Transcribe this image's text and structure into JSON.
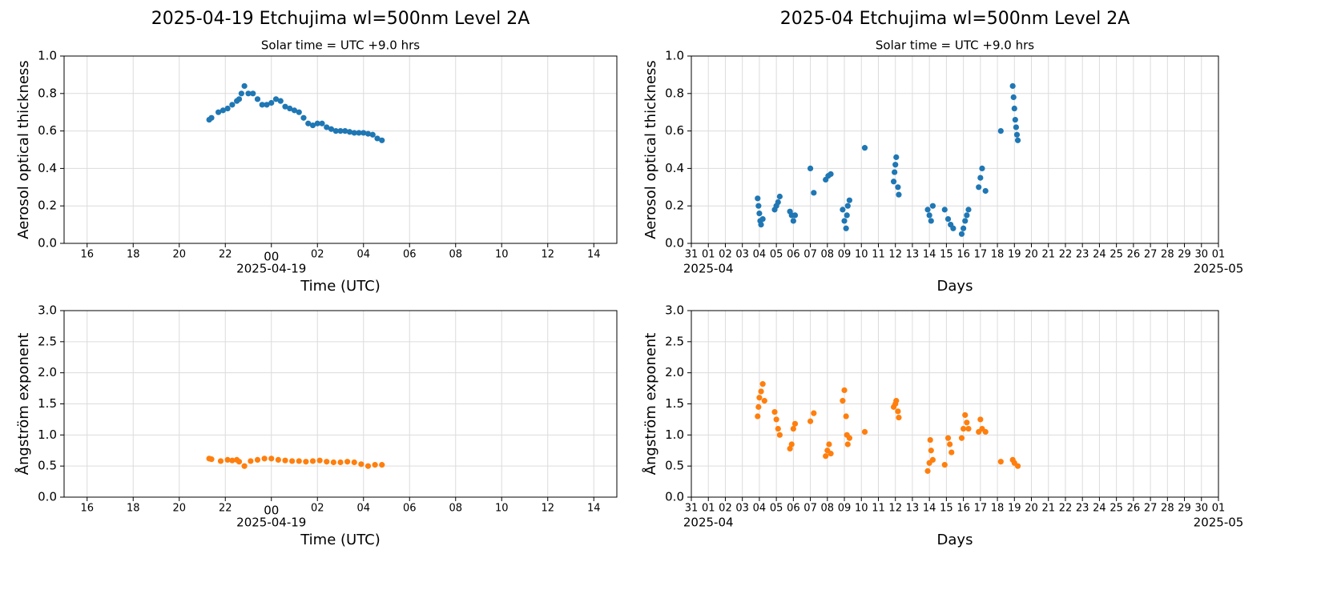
{
  "chart_data": [
    {
      "type": "scatter",
      "title": "2025-04-19  Etchujima  wl=500nm  Level 2A",
      "subtitle": "Solar time = UTC +9.0 hrs",
      "xlabel": "Time (UTC)",
      "ylabel": "Aerosol optical thickness",
      "color": "#1f77b4",
      "grid": true,
      "xlim": [
        -9,
        15
      ],
      "ylim": [
        0,
        1
      ],
      "xticks": [
        {
          "value": -8,
          "label": "16"
        },
        {
          "value": -6,
          "label": "18"
        },
        {
          "value": -4,
          "label": "20"
        },
        {
          "value": -2,
          "label": "22"
        },
        {
          "value": 0,
          "label": "00"
        },
        {
          "value": 2,
          "label": "02"
        },
        {
          "value": 4,
          "label": "04"
        },
        {
          "value": 6,
          "label": "06"
        },
        {
          "value": 8,
          "label": "08"
        },
        10,
        12,
        14
      ],
      "xdate_labels": [
        {
          "value": 0,
          "label": "2025-04-19"
        }
      ],
      "yticks": [
        {
          "value": 0,
          "label": "0.0"
        },
        0.2,
        0.4,
        0.6,
        0.8,
        {
          "value": 1,
          "label": "1.0"
        }
      ],
      "x": [
        -2.7,
        -2.6,
        -2.3,
        -2.1,
        -1.9,
        -1.7,
        -1.5,
        -1.4,
        -1.3,
        -1.17,
        -1.0,
        -0.8,
        -0.6,
        -0.4,
        -0.2,
        0,
        0.2,
        0.4,
        0.6,
        0.8,
        1.0,
        1.2,
        1.4,
        1.6,
        1.8,
        2.0,
        2.2,
        2.4,
        2.6,
        2.8,
        3.0,
        3.2,
        3.4,
        3.6,
        3.8,
        4.0,
        4.2,
        4.4,
        4.6,
        4.8
      ],
      "values": [
        0.66,
        0.67,
        0.7,
        0.71,
        0.72,
        0.74,
        0.76,
        0.77,
        0.8,
        0.84,
        0.8,
        0.8,
        0.77,
        0.74,
        0.74,
        0.75,
        0.77,
        0.76,
        0.73,
        0.72,
        0.71,
        0.7,
        0.67,
        0.64,
        0.63,
        0.64,
        0.64,
        0.62,
        0.61,
        0.6,
        0.6,
        0.6,
        0.595,
        0.59,
        0.59,
        0.59,
        0.585,
        0.58,
        0.56,
        0.55
      ]
    },
    {
      "type": "scatter",
      "title": "2025-04  Etchujima  wl=500nm  Level 2A",
      "subtitle": "Solar time = UTC +9.0 hrs",
      "xlabel": "Days",
      "ylabel": "Aerosol optical thickness",
      "color": "#1f77b4",
      "grid": true,
      "xlim": [
        0,
        31
      ],
      "ylim": [
        0,
        1
      ],
      "xticks": [
        {
          "value": 0,
          "label": "31"
        },
        {
          "value": 1,
          "label": "01"
        },
        {
          "value": 2,
          "label": "02"
        },
        {
          "value": 3,
          "label": "03"
        },
        {
          "value": 4,
          "label": "04"
        },
        {
          "value": 5,
          "label": "05"
        },
        {
          "value": 6,
          "label": "06"
        },
        {
          "value": 7,
          "label": "07"
        },
        {
          "value": 8,
          "label": "08"
        },
        {
          "value": 9,
          "label": "09"
        },
        10,
        11,
        12,
        13,
        14,
        15,
        16,
        17,
        18,
        19,
        20,
        21,
        22,
        23,
        24,
        25,
        26,
        27,
        28,
        29,
        30,
        {
          "value": 31,
          "label": "01"
        }
      ],
      "xdate_labels": [
        {
          "value": 1,
          "label": "2025-04"
        },
        {
          "value": 31,
          "label": "2025-05"
        }
      ],
      "yticks": [
        {
          "value": 0,
          "label": "0.0"
        },
        0.2,
        0.4,
        0.6,
        0.8,
        {
          "value": 1,
          "label": "1.0"
        }
      ],
      "x": [
        3.9,
        3.95,
        4.0,
        4.05,
        4.1,
        4.2,
        4.9,
        5.0,
        5.1,
        5.2,
        5.8,
        5.9,
        6.0,
        6.1,
        7.0,
        7.2,
        7.9,
        8.05,
        8.2,
        8.9,
        9.0,
        9.1,
        9.15,
        9.2,
        9.3,
        10.2,
        11.9,
        11.95,
        12.0,
        12.05,
        12.15,
        12.2,
        13.9,
        14.0,
        14.1,
        14.2,
        14.9,
        15.1,
        15.25,
        15.4,
        15.9,
        16.0,
        16.1,
        16.2,
        16.3,
        16.9,
        17.0,
        17.1,
        17.3,
        18.2,
        18.9,
        18.95,
        19.0,
        19.05,
        19.1,
        19.15,
        19.2
      ],
      "values": [
        0.24,
        0.2,
        0.16,
        0.12,
        0.1,
        0.13,
        0.18,
        0.2,
        0.22,
        0.25,
        0.17,
        0.15,
        0.12,
        0.15,
        0.4,
        0.27,
        0.34,
        0.36,
        0.37,
        0.18,
        0.12,
        0.08,
        0.15,
        0.2,
        0.23,
        0.51,
        0.33,
        0.38,
        0.42,
        0.46,
        0.3,
        0.26,
        0.18,
        0.15,
        0.12,
        0.2,
        0.18,
        0.13,
        0.1,
        0.08,
        0.05,
        0.08,
        0.12,
        0.15,
        0.18,
        0.3,
        0.35,
        0.4,
        0.28,
        0.6,
        0.84,
        0.78,
        0.72,
        0.66,
        0.62,
        0.58,
        0.55
      ]
    },
    {
      "type": "scatter",
      "xlabel": "Time (UTC)",
      "ylabel": "Ångström exponent",
      "color": "#ff7f0e",
      "grid": true,
      "xlim": [
        -9,
        15
      ],
      "ylim": [
        0,
        3
      ],
      "xticks": [
        {
          "value": -8,
          "label": "16"
        },
        {
          "value": -6,
          "label": "18"
        },
        {
          "value": -4,
          "label": "20"
        },
        {
          "value": -2,
          "label": "22"
        },
        {
          "value": 0,
          "label": "00"
        },
        {
          "value": 2,
          "label": "02"
        },
        {
          "value": 4,
          "label": "04"
        },
        {
          "value": 6,
          "label": "06"
        },
        {
          "value": 8,
          "label": "08"
        },
        10,
        12,
        14
      ],
      "xdate_labels": [
        {
          "value": 0,
          "label": "2025-04-19"
        }
      ],
      "yticks": [
        {
          "value": 0,
          "label": "0.0"
        },
        0.5,
        {
          "value": 1,
          "label": "1.0"
        },
        1.5,
        {
          "value": 2,
          "label": "2.0"
        },
        2.5,
        {
          "value": 3,
          "label": "3.0"
        }
      ],
      "x": [
        -2.7,
        -2.6,
        -2.2,
        -1.9,
        -1.7,
        -1.5,
        -1.4,
        -1.17,
        -0.9,
        -0.6,
        -0.3,
        0,
        0.3,
        0.6,
        0.9,
        1.2,
        1.5,
        1.8,
        2.1,
        2.4,
        2.7,
        3.0,
        3.3,
        3.6,
        3.9,
        4.2,
        4.5,
        4.8
      ],
      "values": [
        0.62,
        0.61,
        0.58,
        0.6,
        0.59,
        0.6,
        0.57,
        0.5,
        0.58,
        0.6,
        0.62,
        0.62,
        0.6,
        0.59,
        0.58,
        0.58,
        0.57,
        0.58,
        0.59,
        0.57,
        0.56,
        0.56,
        0.57,
        0.56,
        0.53,
        0.5,
        0.52,
        0.52
      ]
    },
    {
      "type": "scatter",
      "xlabel": "Days",
      "ylabel": "Ångström exponent",
      "color": "#ff7f0e",
      "grid": true,
      "xlim": [
        0,
        31
      ],
      "ylim": [
        0,
        3
      ],
      "xticks": [
        {
          "value": 0,
          "label": "31"
        },
        {
          "value": 1,
          "label": "01"
        },
        {
          "value": 2,
          "label": "02"
        },
        {
          "value": 3,
          "label": "03"
        },
        {
          "value": 4,
          "label": "04"
        },
        {
          "value": 5,
          "label": "05"
        },
        {
          "value": 6,
          "label": "06"
        },
        {
          "value": 7,
          "label": "07"
        },
        {
          "value": 8,
          "label": "08"
        },
        {
          "value": 9,
          "label": "09"
        },
        10,
        11,
        12,
        13,
        14,
        15,
        16,
        17,
        18,
        19,
        20,
        21,
        22,
        23,
        24,
        25,
        26,
        27,
        28,
        29,
        30,
        {
          "value": 31,
          "label": "01"
        }
      ],
      "xdate_labels": [
        {
          "value": 1,
          "label": "2025-04"
        },
        {
          "value": 31,
          "label": "2025-05"
        }
      ],
      "yticks": [
        {
          "value": 0,
          "label": "0.0"
        },
        0.5,
        {
          "value": 1,
          "label": "1.0"
        },
        1.5,
        {
          "value": 2,
          "label": "2.0"
        },
        2.5,
        {
          "value": 3,
          "label": "3.0"
        }
      ],
      "x": [
        3.9,
        3.95,
        4.0,
        4.1,
        4.2,
        4.3,
        4.9,
        5.0,
        5.1,
        5.2,
        5.8,
        5.9,
        6.0,
        6.1,
        7.0,
        7.2,
        7.9,
        8.0,
        8.1,
        8.2,
        8.9,
        9.0,
        9.1,
        9.15,
        9.2,
        9.3,
        10.2,
        11.9,
        12.0,
        12.05,
        12.15,
        12.2,
        13.9,
        14.0,
        14.05,
        14.1,
        14.2,
        14.9,
        15.1,
        15.2,
        15.3,
        15.9,
        16.0,
        16.1,
        16.2,
        16.3,
        16.9,
        17.0,
        17.1,
        17.3,
        18.2,
        18.9,
        19.0,
        19.2
      ],
      "values": [
        1.3,
        1.45,
        1.6,
        1.7,
        1.82,
        1.55,
        1.37,
        1.25,
        1.1,
        1.0,
        0.78,
        0.85,
        1.1,
        1.18,
        1.22,
        1.35,
        0.66,
        0.75,
        0.85,
        0.7,
        1.55,
        1.72,
        1.3,
        1.0,
        0.85,
        0.95,
        1.05,
        1.45,
        1.5,
        1.55,
        1.38,
        1.28,
        0.42,
        0.55,
        0.92,
        0.75,
        0.6,
        0.52,
        0.95,
        0.85,
        0.72,
        0.95,
        1.1,
        1.32,
        1.2,
        1.1,
        1.05,
        1.25,
        1.1,
        1.05,
        0.57,
        0.6,
        0.55,
        0.5
      ]
    }
  ]
}
